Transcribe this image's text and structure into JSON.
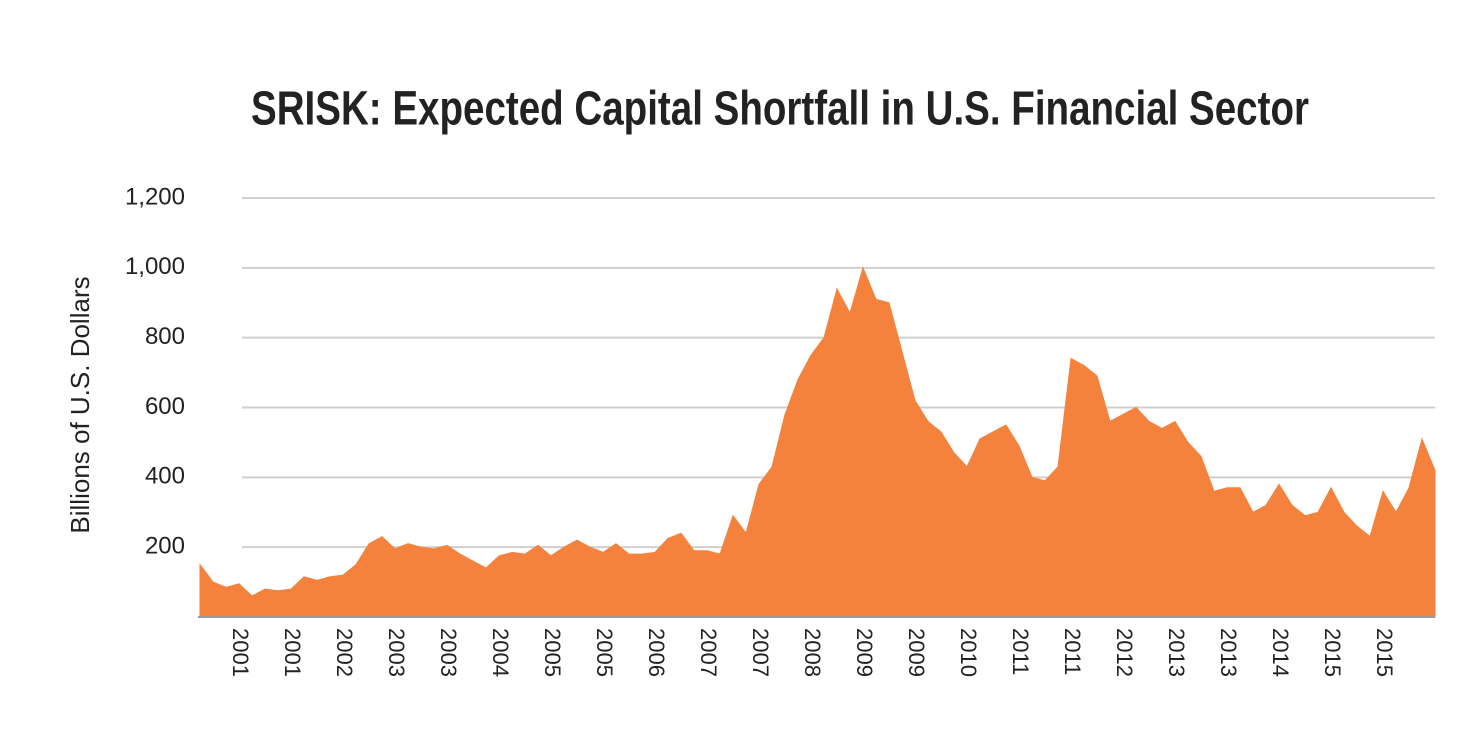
{
  "chart_data": {
    "type": "area",
    "title": "SRISK: Expected Capital Shortfall in U.S. Financial Sector",
    "y_label": "Billions of U.S. Dollars",
    "color": "#f5823c",
    "grid": true,
    "ylim": [
      0,
      1200
    ],
    "yticks": [
      200,
      400,
      600,
      800,
      {
        "value": 1000,
        "label": "1,000"
      },
      {
        "value": 1200,
        "label": "1,200"
      }
    ],
    "categories": [
      null,
      null,
      null,
      "2001",
      null,
      null,
      null,
      "2001",
      null,
      null,
      null,
      "2002",
      null,
      null,
      null,
      "2003",
      null,
      null,
      null,
      "2003",
      null,
      null,
      null,
      "2004",
      null,
      null,
      null,
      "2005",
      null,
      null,
      null,
      "2005",
      null,
      null,
      null,
      "2006",
      null,
      null,
      null,
      "2007",
      null,
      null,
      null,
      "2007",
      null,
      null,
      null,
      "2008",
      null,
      null,
      null,
      "2009",
      null,
      null,
      null,
      "2009",
      null,
      null,
      null,
      "2010",
      null,
      null,
      null,
      "2011",
      null,
      null,
      null,
      "2011",
      null,
      null,
      null,
      "2012",
      null,
      null,
      null,
      "2013",
      null,
      null,
      null,
      "2013",
      null,
      null,
      null,
      "2014",
      null,
      null,
      null,
      "2015",
      null,
      null,
      null,
      "2015",
      null,
      null,
      null,
      null
    ],
    "values": [
      150,
      100,
      85,
      95,
      60,
      80,
      75,
      80,
      115,
      105,
      115,
      120,
      150,
      210,
      230,
      195,
      210,
      200,
      195,
      205,
      180,
      160,
      140,
      175,
      185,
      180,
      205,
      175,
      200,
      220,
      200,
      185,
      210,
      180,
      180,
      185,
      225,
      240,
      190,
      190,
      180,
      290,
      240,
      380,
      430,
      580,
      680,
      750,
      800,
      940,
      870,
      1000,
      910,
      900,
      760,
      620,
      560,
      530,
      470,
      430,
      510,
      530,
      550,
      490,
      400,
      390,
      430,
      740,
      720,
      690,
      560,
      580,
      600,
      560,
      540,
      560,
      500,
      460,
      360,
      370,
      370,
      300,
      320,
      380,
      320,
      290,
      300,
      370,
      300,
      260,
      230,
      360,
      300,
      370,
      510,
      420
    ]
  }
}
